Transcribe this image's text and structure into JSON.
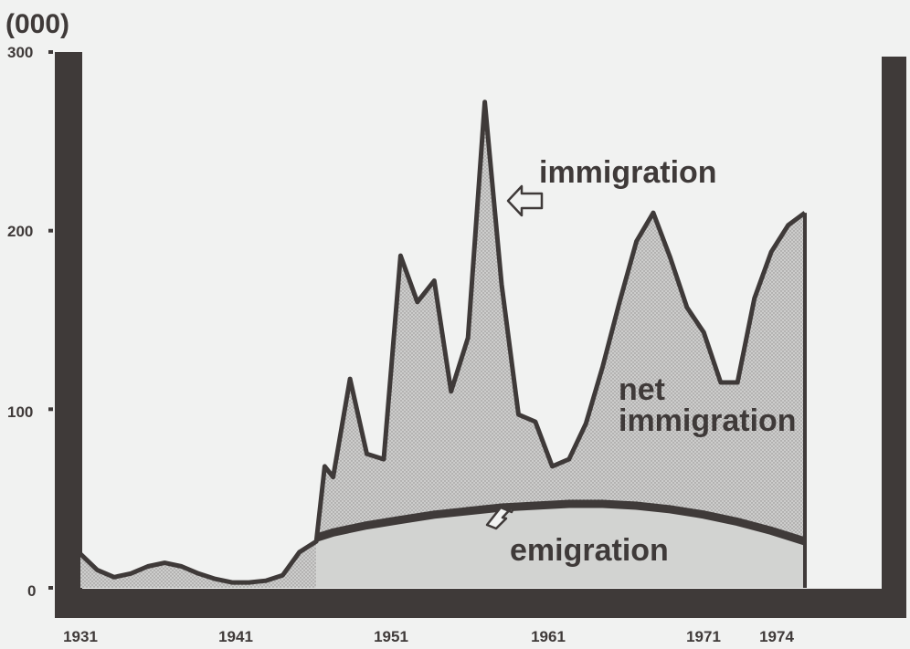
{
  "chart_data": {
    "type": "area",
    "unit_label": "(000)",
    "yticks": [
      0,
      100,
      200,
      300
    ],
    "ylim": [
      0,
      300
    ],
    "xticks": [
      "1931",
      "1941",
      "1951",
      "1961",
      "1971",
      "1974"
    ],
    "xlim": [
      1931,
      1974
    ],
    "grid": false,
    "series": [
      {
        "name": "immigration",
        "x": [
          1931,
          1932,
          1933,
          1934,
          1935,
          1936,
          1937,
          1938,
          1939,
          1940,
          1941,
          1942,
          1943,
          1944,
          1945,
          1945.5,
          1946,
          1947,
          1948,
          1949,
          1950,
          1951,
          1952,
          1953,
          1954,
          1955,
          1956,
          1957,
          1958,
          1959,
          1960,
          1961,
          1962,
          1963,
          1964,
          1965,
          1966,
          1967,
          1968,
          1969,
          1970,
          1971,
          1972,
          1973,
          1974
        ],
        "values": [
          19,
          10,
          6,
          8,
          12,
          14,
          12,
          8,
          5,
          3,
          3,
          4,
          7,
          20,
          26,
          68,
          62,
          117,
          75,
          72,
          186,
          160,
          172,
          110,
          140,
          272,
          170,
          97,
          93,
          68,
          72,
          92,
          124,
          160,
          194,
          210,
          185,
          157,
          143,
          115,
          115,
          162,
          188,
          203,
          210
        ]
      },
      {
        "name": "emigration",
        "x": [
          1945,
          1946,
          1948,
          1950,
          1952,
          1954,
          1956,
          1958,
          1960,
          1962,
          1964,
          1966,
          1968,
          1970,
          1972,
          1974
        ],
        "values": [
          28,
          31,
          35,
          38,
          41,
          43,
          45,
          46,
          47,
          47,
          46,
          44,
          41,
          37,
          32,
          26
        ]
      }
    ],
    "annotations": [
      "immigration",
      "net",
      "immigration",
      "emigration"
    ]
  }
}
